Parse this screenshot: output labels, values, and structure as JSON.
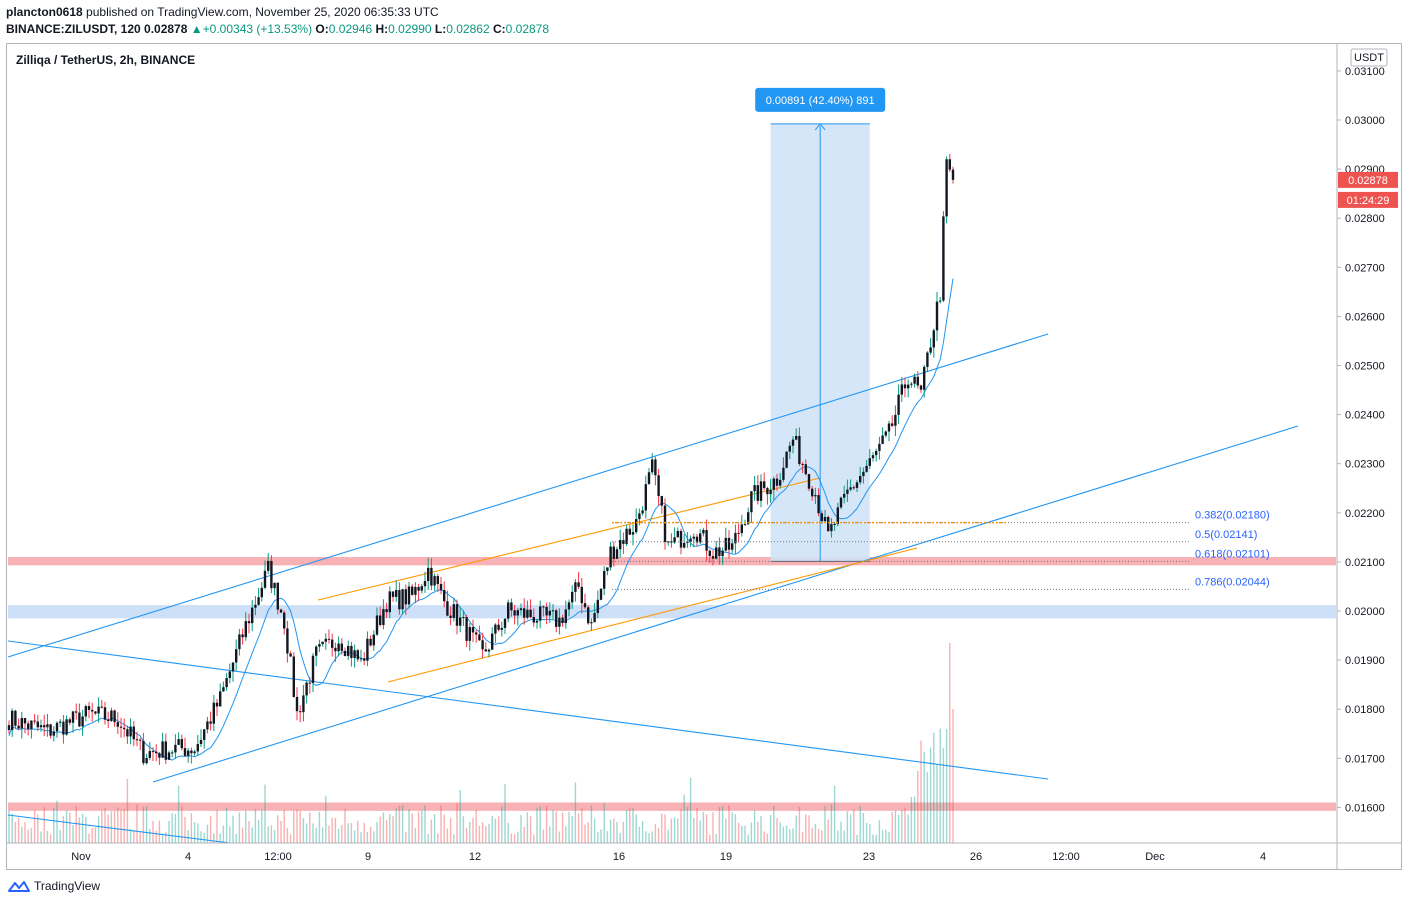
{
  "header": {
    "author": "plancton0618",
    "published_text": "published on TradingView.com, November 25, 2020 06:35:33 UTC",
    "ticker": "BINANCE:ZILUSDT, 120",
    "last": "0.02878",
    "change": "+0.00343 (+13.53%)",
    "open_label": "O:",
    "open": "0.02946",
    "high_label": "H:",
    "high": "0.02990",
    "low_label": "L:",
    "low": "0.02862",
    "close_label": "C:",
    "close": "0.02878"
  },
  "symbol_title": "Zilliqa / TetherUS, 2h, BINANCE",
  "branding": "TradingView",
  "colors": {
    "up": "#089981",
    "down": "#f23645",
    "candle_body": "#131722",
    "trend_line": "#2196f3",
    "channel_line": "#ff9800",
    "resistance_zone": "#f7a3a8",
    "support_zone": "#c5dbf6",
    "measure_box": "#d0e3f7",
    "measure_label": "#2196f3",
    "price_tag": "#ef5350"
  },
  "chart_data": {
    "type": "candlestick",
    "title": "Zilliqa / TetherUS, 2h, BINANCE",
    "currency_label": "USDT",
    "y_ticks": [
      "0.03100",
      "0.03000",
      "0.02900",
      "0.02800",
      "0.02700",
      "0.02600",
      "0.02500",
      "0.02400",
      "0.02300",
      "0.02200",
      "0.02100",
      "0.02000",
      "0.01900",
      "0.01800",
      "0.01700",
      "0.01600"
    ],
    "x_ticks": [
      "Nov",
      "4",
      "12:00",
      "9",
      "12",
      "16",
      "19",
      "23",
      "26",
      "12:00",
      "Dec",
      "4"
    ],
    "ylim": [
      0.0157,
      0.0312
    ],
    "last_price": "0.02878",
    "countdown": "01:24:29",
    "price_path": [
      {
        "bar": 0,
        "price": 0.0178
      },
      {
        "bar": 12,
        "price": 0.01755
      },
      {
        "bar": 25,
        "price": 0.0179
      },
      {
        "bar": 34,
        "price": 0.0178
      },
      {
        "bar": 42,
        "price": 0.0171
      },
      {
        "bar": 52,
        "price": 0.0172
      },
      {
        "bar": 58,
        "price": 0.0172
      },
      {
        "bar": 66,
        "price": 0.0182
      },
      {
        "bar": 74,
        "price": 0.0197
      },
      {
        "bar": 81,
        "price": 0.02085
      },
      {
        "bar": 86,
        "price": 0.0198
      },
      {
        "bar": 90,
        "price": 0.0179
      },
      {
        "bar": 96,
        "price": 0.0191
      },
      {
        "bar": 103,
        "price": 0.01945
      },
      {
        "bar": 110,
        "price": 0.01895
      },
      {
        "bar": 118,
        "price": 0.0202
      },
      {
        "bar": 126,
        "price": 0.0203
      },
      {
        "bar": 131,
        "price": 0.02085
      },
      {
        "bar": 136,
        "price": 0.0202
      },
      {
        "bar": 142,
        "price": 0.0197
      },
      {
        "bar": 148,
        "price": 0.0191
      },
      {
        "bar": 156,
        "price": 0.02
      },
      {
        "bar": 164,
        "price": 0.0199
      },
      {
        "bar": 172,
        "price": 0.0198
      },
      {
        "bar": 178,
        "price": 0.0205
      },
      {
        "bar": 182,
        "price": 0.0197
      },
      {
        "bar": 188,
        "price": 0.0212
      },
      {
        "bar": 196,
        "price": 0.0218
      },
      {
        "bar": 201,
        "price": 0.0229
      },
      {
        "bar": 206,
        "price": 0.0213
      },
      {
        "bar": 214,
        "price": 0.0217
      },
      {
        "bar": 220,
        "price": 0.0212
      },
      {
        "bar": 226,
        "price": 0.0213
      },
      {
        "bar": 232,
        "price": 0.0223
      },
      {
        "bar": 240,
        "price": 0.0227
      },
      {
        "bar": 245,
        "price": 0.0235
      },
      {
        "bar": 252,
        "price": 0.0224
      },
      {
        "bar": 256,
        "price": 0.0215
      },
      {
        "bar": 262,
        "price": 0.0224
      },
      {
        "bar": 270,
        "price": 0.0231
      },
      {
        "bar": 275,
        "price": 0.0236
      },
      {
        "bar": 281,
        "price": 0.0248
      },
      {
        "bar": 285,
        "price": 0.0244
      },
      {
        "bar": 288,
        "price": 0.0255
      },
      {
        "bar": 291,
        "price": 0.0265
      },
      {
        "bar": 293,
        "price": 0.0292
      },
      {
        "bar": 295,
        "price": 0.02878
      }
    ],
    "zones": [
      {
        "name": "resistance-zone-upper",
        "from": 0.02093,
        "to": 0.0211,
        "color": "#f7a3a8"
      },
      {
        "name": "support-zone",
        "from": 0.01985,
        "to": 0.02012,
        "color": "#c5dbf6"
      },
      {
        "name": "resistance-zone-lower",
        "from": 0.01593,
        "to": 0.0161,
        "color": "#f7a3a8"
      }
    ],
    "fibonacci": [
      {
        "label": "0.382(0.02180)",
        "price": 0.0218
      },
      {
        "label": "0.5(0.02141)",
        "price": 0.02141
      },
      {
        "label": "0.618(0.02101)",
        "price": 0.02101
      },
      {
        "label": "0.786(0.02044)",
        "price": 0.02044
      }
    ],
    "measure": {
      "label": "0.00891 (42.40%) 891",
      "from_price": 0.02101,
      "to_price": 0.02992,
      "from_bar": 238,
      "to_bar": 269
    }
  }
}
